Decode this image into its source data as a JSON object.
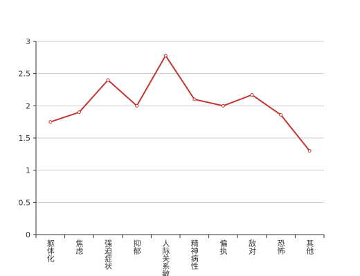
{
  "chart_data": {
    "type": "line",
    "categories": [
      "躯体化",
      "焦虑",
      "强迫症状",
      "抑郁",
      "人际关系敏感",
      "精神病性",
      "偏执",
      "敌对",
      "恐怖",
      "其他"
    ],
    "values": [
      1.75,
      1.9,
      2.4,
      2.0,
      2.78,
      2.1,
      2.0,
      2.17,
      1.86,
      1.3
    ],
    "color": "#c23531",
    "ylim": [
      0,
      3
    ],
    "yticks": [
      0,
      0.5,
      1,
      1.5,
      2,
      2.5,
      3
    ],
    "grid": true
  }
}
